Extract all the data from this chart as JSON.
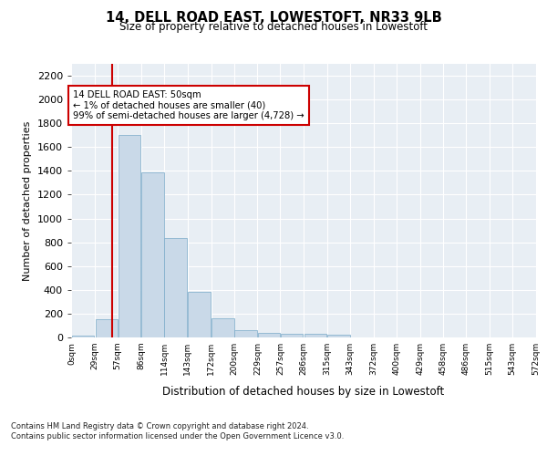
{
  "title": "14, DELL ROAD EAST, LOWESTOFT, NR33 9LB",
  "subtitle": "Size of property relative to detached houses in Lowestoft",
  "xlabel": "Distribution of detached houses by size in Lowestoft",
  "ylabel": "Number of detached properties",
  "bar_values": [
    15,
    155,
    1700,
    1390,
    835,
    385,
    160,
    65,
    40,
    30,
    30,
    20,
    0,
    0,
    0,
    0,
    0,
    0,
    0,
    0
  ],
  "bar_left_edges": [
    0,
    29,
    57,
    86,
    114,
    143,
    172,
    200,
    229,
    257,
    286,
    315,
    343,
    372,
    400,
    429,
    458,
    486,
    515,
    543
  ],
  "bar_width": 28.5,
  "tick_labels": [
    "0sqm",
    "29sqm",
    "57sqm",
    "86sqm",
    "114sqm",
    "143sqm",
    "172sqm",
    "200sqm",
    "229sqm",
    "257sqm",
    "286sqm",
    "315sqm",
    "343sqm",
    "372sqm",
    "400sqm",
    "429sqm",
    "458sqm",
    "486sqm",
    "515sqm",
    "543sqm",
    "572sqm"
  ],
  "bar_color": "#c9d9e8",
  "bar_edge_color": "#7aaac8",
  "vline_x": 50,
  "vline_color": "#cc0000",
  "annotation_text": "14 DELL ROAD EAST: 50sqm\n← 1% of detached houses are smaller (40)\n99% of semi-detached houses are larger (4,728) →",
  "annotation_box_color": "#cc0000",
  "annotation_text_color": "#000000",
  "ylim": [
    0,
    2300
  ],
  "yticks": [
    0,
    200,
    400,
    600,
    800,
    1000,
    1200,
    1400,
    1600,
    1800,
    2000,
    2200
  ],
  "background_color": "#e8eef4",
  "footer_line1": "Contains HM Land Registry data © Crown copyright and database right 2024.",
  "footer_line2": "Contains public sector information licensed under the Open Government Licence v3.0."
}
